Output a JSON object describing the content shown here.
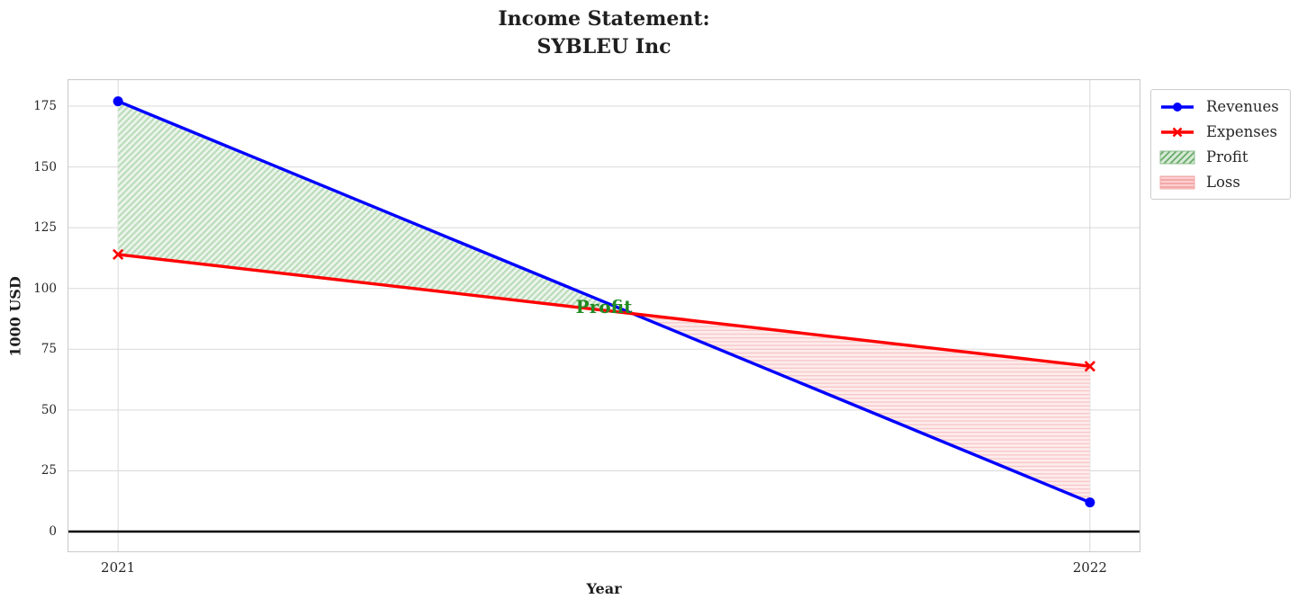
{
  "chart_data": {
    "type": "line",
    "title_lines": [
      "Income Statement:",
      "SYBLEU Inc"
    ],
    "xlabel": "Year",
    "ylabel": "1000 USD",
    "x": [
      2021,
      2022
    ],
    "series": [
      {
        "name": "Revenues",
        "values": [
          177,
          12
        ],
        "color": "#0000ff",
        "marker": "circle"
      },
      {
        "name": "Expenses",
        "values": [
          114,
          68
        ],
        "color": "#ff0000",
        "marker": "x"
      }
    ],
    "fill_regions": [
      {
        "name": "Profit",
        "rule": "where revenues > expenses",
        "hatch": "diagonal",
        "fill": "#ebf4eb",
        "hatch_color": "#b9dcb9"
      },
      {
        "name": "Loss",
        "rule": "where revenues < expenses",
        "hatch": "horizontal",
        "fill": "#fdecec",
        "hatch_color": "#f8c8c8"
      }
    ],
    "annotation": {
      "text": "Profit",
      "x": 2021.5,
      "y": 92.5,
      "color": "#228b22"
    },
    "xticks": [
      "2021",
      "2022"
    ],
    "xtick_values": [
      2021,
      2022
    ],
    "yticks": [
      "0",
      "25",
      "50",
      "75",
      "100",
      "125",
      "150",
      "175"
    ],
    "ytick_values": [
      0,
      25,
      50,
      75,
      100,
      125,
      150,
      175
    ],
    "xlim": [
      2020.948,
      2022.052
    ],
    "ylim": [
      -8.5,
      186.1
    ],
    "zero_line_y": 0,
    "grid": true,
    "legend": {
      "position": "outside-upper-right",
      "items": [
        {
          "label": "Revenues",
          "swatch": "line-circle",
          "color": "#0000ff"
        },
        {
          "label": "Expenses",
          "swatch": "line-x",
          "color": "#ff0000"
        },
        {
          "label": "Profit",
          "swatch": "patch-diagonal",
          "fill": "#d6ead6",
          "hatch_color": "#6aaa6a"
        },
        {
          "label": "Loss",
          "swatch": "patch-horizontal",
          "fill": "#fbd0d0",
          "hatch_color": "#f29b9b"
        }
      ]
    },
    "text_color": "#262626",
    "grid_color": "#d9d9d9",
    "frame_color": "#cccccc",
    "zero_line_color": "#000000"
  }
}
